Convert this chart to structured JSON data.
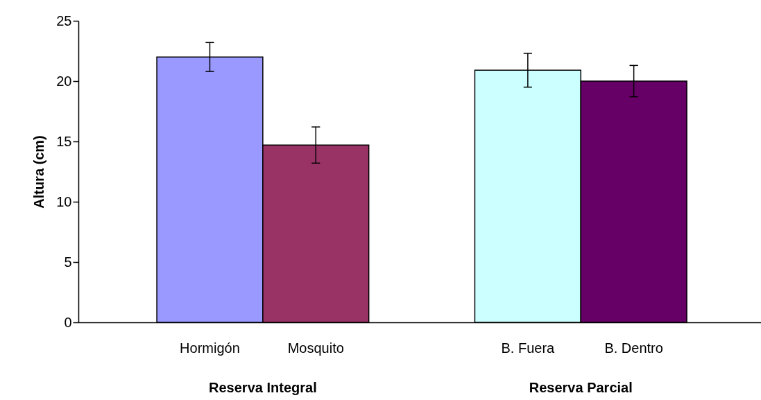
{
  "chart_data": {
    "type": "bar",
    "ylabel": "Altura (cm)",
    "categories": [
      "Hormigón",
      "Mosquito",
      "B. Fuera",
      "B. Dentro"
    ],
    "values": [
      22.0,
      14.7,
      20.9,
      20.0
    ],
    "errors": [
      1.2,
      1.5,
      1.4,
      1.3
    ],
    "colors": [
      "#9999ff",
      "#993366",
      "#ccffff",
      "#660066"
    ],
    "ylim": [
      0,
      25
    ],
    "yticks": [
      0,
      5,
      10,
      15,
      20,
      25
    ],
    "grid": false,
    "annotations": [
      "Reserva Integral",
      "Reserva Parcial"
    ]
  }
}
